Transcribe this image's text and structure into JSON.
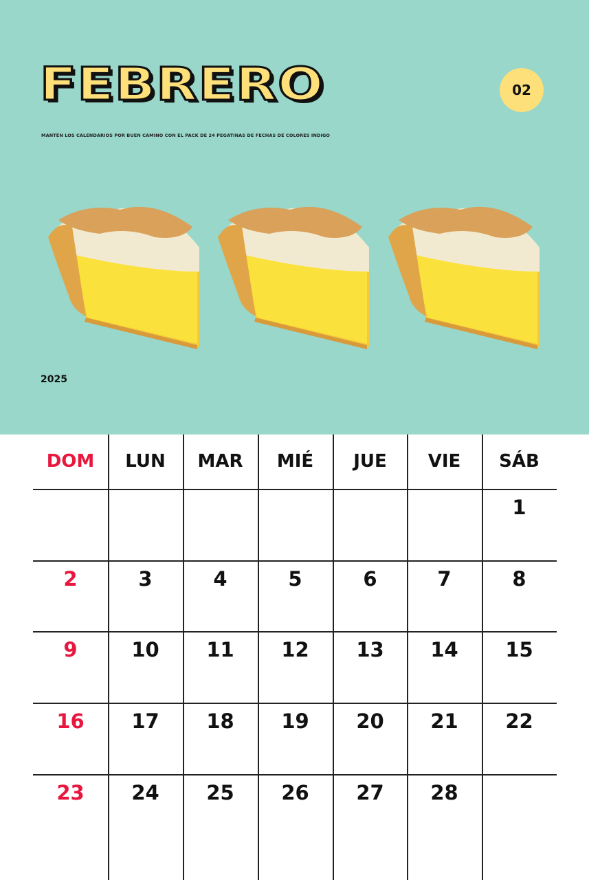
{
  "header": {
    "month": "FEBRERO",
    "month_number": "02",
    "subtitle": "MANTÉN LOS CALENDARIOS POR BUEN CAMINO CON EL PACK DE 24 PEGATINAS DE FECHAS DE COLORES INDIGO",
    "year": "2025"
  },
  "colors": {
    "background": "#98d7c9",
    "accent_yellow": "#fde07a",
    "sunday_red": "#e8173f"
  },
  "illustration": "lemon-meringue-pie-slice x3",
  "calendar": {
    "weekdays": [
      "DOM",
      "LUN",
      "MAR",
      "MIÉ",
      "JUE",
      "VIE",
      "SÁB"
    ],
    "weeks": [
      [
        "",
        "",
        "",
        "",
        "",
        "",
        "1"
      ],
      [
        "2",
        "3",
        "4",
        "5",
        "6",
        "7",
        "8"
      ],
      [
        "9",
        "10",
        "11",
        "12",
        "13",
        "14",
        "15"
      ],
      [
        "16",
        "17",
        "18",
        "19",
        "20",
        "21",
        "22"
      ],
      [
        "23",
        "24",
        "25",
        "26",
        "27",
        "28",
        ""
      ]
    ]
  }
}
